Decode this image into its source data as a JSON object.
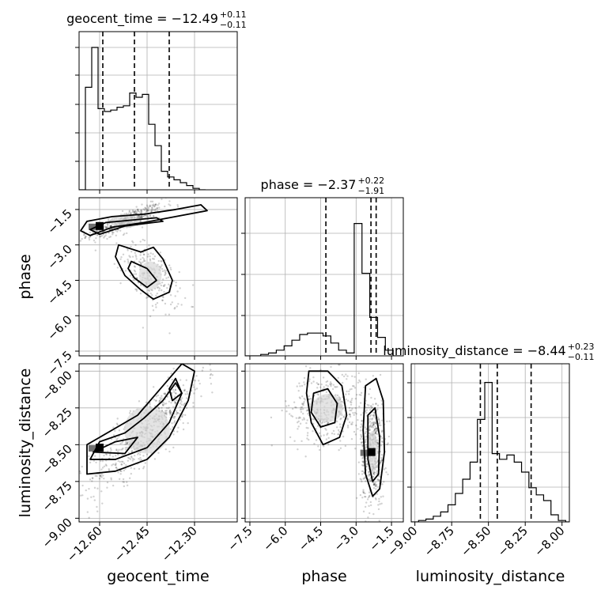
{
  "chart_data": {
    "type": "corner",
    "parameters": [
      "geocent_time",
      "phase",
      "luminosity_distance"
    ],
    "axis_labels": [
      "geocent_time",
      "phase",
      "luminosity_distance"
    ],
    "ranges": [
      [
        -12.665,
        -12.165
      ],
      [
        -7.7,
        -1.0
      ],
      [
        -9.025,
        -7.95
      ]
    ],
    "ticks": [
      {
        "values": [
          -12.6,
          -12.45,
          -12.3
        ],
        "labels": [
          "−12.60",
          "−12.45",
          "−12.30"
        ]
      },
      {
        "values": [
          -7.5,
          -6.0,
          -4.5,
          -3.0,
          -1.5
        ],
        "labels": [
          "−7.5",
          "−6.0",
          "−4.5",
          "−3.0",
          "−1.5"
        ]
      },
      {
        "values": [
          -9.0,
          -8.75,
          -8.5,
          -8.25,
          -8.0
        ],
        "labels": [
          "−9.00",
          "−8.75",
          "−8.50",
          "−8.25",
          "−8.00"
        ]
      }
    ],
    "titles": [
      {
        "name": "geocent_time",
        "median": "−12.49",
        "plus": "+0.11",
        "minus": "−0.11"
      },
      {
        "name": "phase",
        "median": "−2.37",
        "plus": "+0.22",
        "minus": "−1.91"
      },
      {
        "name": "luminosity_distance",
        "median": "−8.44",
        "plus": "+0.23",
        "minus": "−0.11"
      }
    ],
    "quantiles": [
      [
        -12.59,
        -12.49,
        -12.38
      ],
      [
        -4.28,
        -2.37,
        -2.15
      ],
      [
        -8.555,
        -8.44,
        -8.21
      ]
    ],
    "histograms": [
      {
        "edges_start": -12.665,
        "bin_width": 0.02,
        "counts": [
          0.0,
          0.72,
          1.0,
          0.57,
          0.55,
          0.56,
          0.58,
          0.59,
          0.68,
          0.65,
          0.67,
          0.46,
          0.31,
          0.13,
          0.09,
          0.07,
          0.05,
          0.03,
          0.01,
          0.0
        ]
      },
      {
        "edges_start": -7.7,
        "bin_width": 0.33,
        "counts": [
          0.0,
          0.0,
          0.01,
          0.02,
          0.04,
          0.07,
          0.11,
          0.15,
          0.16,
          0.16,
          0.14,
          0.09,
          0.04,
          0.02,
          0.93,
          0.58,
          0.27,
          0.13,
          0.04,
          0.0
        ]
      },
      {
        "edges_start": -9.025,
        "bin_width": 0.05,
        "counts": [
          0.0,
          0.01,
          0.02,
          0.04,
          0.07,
          0.12,
          0.2,
          0.3,
          0.42,
          0.72,
          0.98,
          0.48,
          0.44,
          0.47,
          0.42,
          0.35,
          0.24,
          0.19,
          0.15,
          0.05,
          0.01,
          0.0
        ]
      }
    ],
    "pairs": [
      {
        "x": 0,
        "y": 1,
        "modes": [
          {
            "cx": -12.52,
            "cy": -2.0,
            "sx": 0.06,
            "sy": 0.35,
            "rho": 0.85,
            "n": 450
          },
          {
            "cx": -12.44,
            "cy": -4.3,
            "sx": 0.045,
            "sy": 0.75,
            "rho": -0.55,
            "n": 260
          }
        ],
        "peak": {
          "x": -12.6,
          "y": -2.2
        },
        "contours": [
          [
            [
              -12.66,
              -2.4
            ],
            [
              -12.64,
              -2.0
            ],
            [
              -12.56,
              -1.8
            ],
            [
              -12.46,
              -1.7
            ],
            [
              -12.36,
              -1.5
            ],
            [
              -12.28,
              -1.3
            ],
            [
              -12.26,
              -1.55
            ],
            [
              -12.36,
              -1.8
            ],
            [
              -12.46,
              -2.05
            ],
            [
              -12.56,
              -2.25
            ],
            [
              -12.63,
              -2.6
            ]
          ],
          [
            [
              -12.63,
              -2.35
            ],
            [
              -12.58,
              -2.05
            ],
            [
              -12.5,
              -1.95
            ],
            [
              -12.42,
              -1.85
            ],
            [
              -12.4,
              -2.0
            ],
            [
              -12.52,
              -2.2
            ],
            [
              -12.6,
              -2.55
            ]
          ],
          [
            [
              -12.54,
              -3.0
            ],
            [
              -12.47,
              -3.3
            ],
            [
              -12.43,
              -3.1
            ],
            [
              -12.4,
              -3.6
            ],
            [
              -12.37,
              -4.5
            ],
            [
              -12.38,
              -5.0
            ],
            [
              -12.43,
              -5.3
            ],
            [
              -12.47,
              -4.9
            ],
            [
              -12.52,
              -4.3
            ],
            [
              -12.55,
              -3.5
            ]
          ],
          [
            [
              -12.5,
              -3.7
            ],
            [
              -12.45,
              -4.0
            ],
            [
              -12.42,
              -4.5
            ],
            [
              -12.45,
              -4.8
            ],
            [
              -12.49,
              -4.4
            ],
            [
              -12.51,
              -4.0
            ]
          ]
        ]
      },
      {
        "x": 0,
        "y": 2,
        "modes": [
          {
            "cx": -12.45,
            "cy": -8.4,
            "sx": 0.09,
            "sy": 0.2,
            "rho": 0.85,
            "n": 650
          }
        ],
        "peak": {
          "x": -12.6,
          "y": -8.52
        },
        "contours": [
          [
            [
              -12.64,
              -8.7
            ],
            [
              -12.64,
              -8.5
            ],
            [
              -12.56,
              -8.4
            ],
            [
              -12.48,
              -8.3
            ],
            [
              -12.4,
              -8.1
            ],
            [
              -12.34,
              -7.95
            ],
            [
              -12.3,
              -8.0
            ],
            [
              -12.32,
              -8.2
            ],
            [
              -12.38,
              -8.45
            ],
            [
              -12.45,
              -8.6
            ],
            [
              -12.55,
              -8.68
            ]
          ],
          [
            [
              -12.63,
              -8.6
            ],
            [
              -12.6,
              -8.48
            ],
            [
              -12.52,
              -8.42
            ],
            [
              -12.46,
              -8.32
            ],
            [
              -12.4,
              -8.2
            ],
            [
              -12.36,
              -8.08
            ],
            [
              -12.34,
              -8.15
            ],
            [
              -12.38,
              -8.35
            ],
            [
              -12.45,
              -8.52
            ],
            [
              -12.55,
              -8.6
            ]
          ],
          [
            [
              -12.62,
              -8.55
            ],
            [
              -12.55,
              -8.48
            ],
            [
              -12.48,
              -8.45
            ],
            [
              -12.52,
              -8.56
            ]
          ],
          [
            [
              -12.36,
              -8.05
            ],
            [
              -12.34,
              -8.15
            ],
            [
              -12.37,
              -8.2
            ],
            [
              -12.38,
              -8.12
            ]
          ]
        ]
      },
      {
        "x": 1,
        "y": 2,
        "modes": [
          {
            "cx": -4.2,
            "cy": -8.25,
            "sx": 0.8,
            "sy": 0.12,
            "rho": 0.1,
            "n": 420
          },
          {
            "cx": -2.3,
            "cy": -8.55,
            "sx": 0.25,
            "sy": 0.18,
            "rho": 0.0,
            "n": 520
          }
        ],
        "peak": {
          "x": -2.35,
          "y": -8.55
        },
        "contours": [
          [
            [
              -5.0,
              -8.0
            ],
            [
              -4.2,
              -8.0
            ],
            [
              -3.6,
              -8.1
            ],
            [
              -3.4,
              -8.3
            ],
            [
              -3.7,
              -8.45
            ],
            [
              -4.4,
              -8.5
            ],
            [
              -4.9,
              -8.35
            ],
            [
              -5.1,
              -8.15
            ]
          ],
          [
            [
              -4.8,
              -8.15
            ],
            [
              -4.2,
              -8.12
            ],
            [
              -3.8,
              -8.22
            ],
            [
              -3.9,
              -8.35
            ],
            [
              -4.5,
              -8.38
            ],
            [
              -4.9,
              -8.28
            ]
          ],
          [
            [
              -2.6,
              -8.1
            ],
            [
              -2.15,
              -8.05
            ],
            [
              -1.85,
              -8.2
            ],
            [
              -1.8,
              -8.55
            ],
            [
              -2.0,
              -8.8
            ],
            [
              -2.3,
              -8.85
            ],
            [
              -2.6,
              -8.7
            ],
            [
              -2.7,
              -8.4
            ]
          ],
          [
            [
              -2.5,
              -8.3
            ],
            [
              -2.2,
              -8.25
            ],
            [
              -2.0,
              -8.45
            ],
            [
              -2.05,
              -8.7
            ],
            [
              -2.3,
              -8.75
            ],
            [
              -2.5,
              -8.6
            ]
          ]
        ]
      }
    ]
  }
}
